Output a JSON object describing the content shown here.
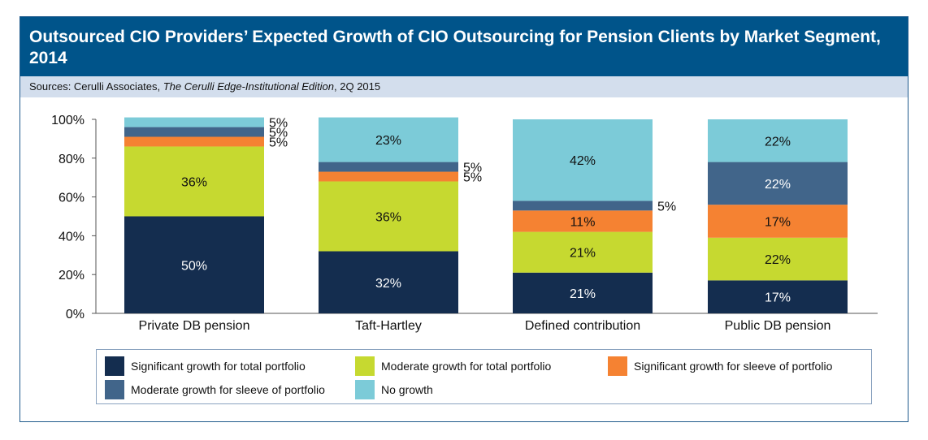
{
  "header": {
    "title": "Outsourced CIO Providers’ Expected Growth of CIO Outsourcing for Pension Clients by Market Segment, 2014",
    "source_prefix": "Sources: Cerulli Associates, ",
    "source_italic": "The Cerulli Edge-Institutional Edition",
    "source_suffix": ", 2Q 2015"
  },
  "colors": {
    "title_bar": "#00548a",
    "source_bar": "#d3deed"
  },
  "chart_data": {
    "type": "bar",
    "stacked": true,
    "title": "Outsourced CIO Providers’ Expected Growth of CIO Outsourcing for Pension Clients by Market Segment, 2014",
    "categories": [
      "Private DB pension",
      "Taft-Hartley",
      "Defined contribution",
      "Public DB pension"
    ],
    "series": [
      {
        "name": "Significant growth for total portfolio",
        "color": "#142d4f",
        "label_color": "#ffffff",
        "values": [
          50,
          32,
          21,
          17
        ]
      },
      {
        "name": "Moderate growth for total portfolio",
        "color": "#c6d930",
        "label_color": "#111111",
        "values": [
          36,
          36,
          21,
          22
        ]
      },
      {
        "name": "Significant growth for sleeve of portfolio",
        "color": "#f58232",
        "label_color": "#111111",
        "values": [
          5,
          5,
          11,
          17
        ]
      },
      {
        "name": "Moderate growth for sleeve of portfolio",
        "color": "#41658a",
        "label_color": "#ffffff",
        "values": [
          5,
          5,
          5,
          22
        ]
      },
      {
        "name": "No growth",
        "color": "#7ccbd8",
        "label_color": "#111111",
        "values": [
          5,
          23,
          42,
          22
        ]
      }
    ],
    "ylim": [
      0,
      100
    ],
    "yticks": [
      "0%",
      "20%",
      "40%",
      "60%",
      "80%",
      "100%"
    ],
    "ytick_values": [
      0,
      20,
      40,
      60,
      80,
      100
    ],
    "xlabel": "",
    "ylabel": "",
    "legend_position": "bottom",
    "data_labels": [
      {
        "category": 0,
        "series": 0,
        "text": "50%",
        "placement": "inside"
      },
      {
        "category": 0,
        "series": 1,
        "text": "36%",
        "placement": "inside"
      },
      {
        "category": 0,
        "series": 2,
        "text": "5%",
        "placement": "outside"
      },
      {
        "category": 0,
        "series": 3,
        "text": "5%",
        "placement": "outside"
      },
      {
        "category": 0,
        "series": 4,
        "text": "5%",
        "placement": "outside"
      },
      {
        "category": 1,
        "series": 0,
        "text": "32%",
        "placement": "inside"
      },
      {
        "category": 1,
        "series": 1,
        "text": "36%",
        "placement": "inside"
      },
      {
        "category": 1,
        "series": 2,
        "text": "5%",
        "placement": "outside"
      },
      {
        "category": 1,
        "series": 3,
        "text": "5%",
        "placement": "outside"
      },
      {
        "category": 1,
        "series": 4,
        "text": "23%",
        "placement": "inside"
      },
      {
        "category": 2,
        "series": 0,
        "text": "21%",
        "placement": "inside"
      },
      {
        "category": 2,
        "series": 1,
        "text": "21%",
        "placement": "inside"
      },
      {
        "category": 2,
        "series": 2,
        "text": "11%",
        "placement": "inside"
      },
      {
        "category": 2,
        "series": 3,
        "text": "5%",
        "placement": "outside"
      },
      {
        "category": 2,
        "series": 4,
        "text": "42%",
        "placement": "inside"
      },
      {
        "category": 3,
        "series": 0,
        "text": "17%",
        "placement": "inside"
      },
      {
        "category": 3,
        "series": 1,
        "text": "22%",
        "placement": "inside"
      },
      {
        "category": 3,
        "series": 2,
        "text": "17%",
        "placement": "inside"
      },
      {
        "category": 3,
        "series": 3,
        "text": "22%",
        "placement": "inside"
      },
      {
        "category": 3,
        "series": 4,
        "text": "22%",
        "placement": "inside"
      }
    ]
  }
}
